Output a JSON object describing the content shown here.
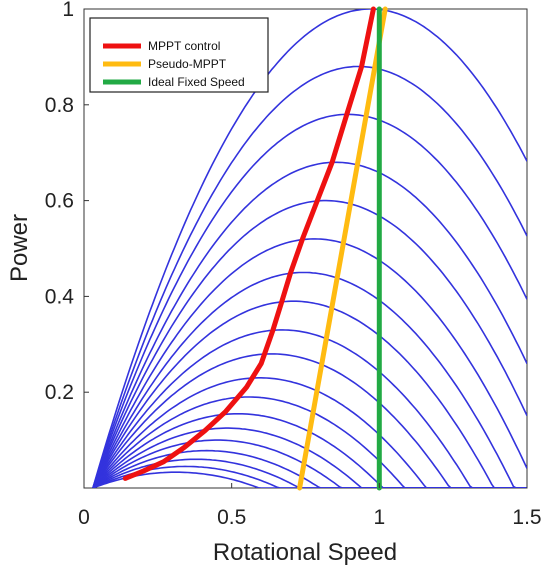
{
  "chart_data": {
    "type": "line",
    "xlabel": "Rotational Speed",
    "ylabel": "Power",
    "xlim": [
      0,
      1.5
    ],
    "ylim": [
      0,
      1.0
    ],
    "xticks": [
      "0",
      "0.5",
      "1",
      "1.5"
    ],
    "yticks": [
      "0.2",
      "0.4",
      "0.6",
      "0.8",
      "1"
    ],
    "grid": false,
    "legend_position": "top-left",
    "power_curves": {
      "color": "#3333dd",
      "peak_powers": [
        1.0,
        0.88,
        0.78,
        0.68,
        0.6,
        0.52,
        0.45,
        0.39,
        0.33,
        0.28,
        0.23,
        0.19,
        0.155,
        0.125,
        0.1,
        0.078,
        0.06,
        0.045,
        0.033
      ]
    },
    "series": [
      {
        "name": "MPPT control",
        "color": "#ee1111",
        "x": [
          0.14,
          0.2,
          0.27,
          0.34,
          0.41,
          0.48,
          0.55,
          0.6,
          0.64,
          0.67,
          0.7,
          0.74,
          0.79,
          0.84,
          0.89,
          0.94,
          0.98
        ],
        "y": [
          0.02,
          0.035,
          0.055,
          0.085,
          0.12,
          0.16,
          0.21,
          0.26,
          0.33,
          0.39,
          0.45,
          0.52,
          0.6,
          0.68,
          0.78,
          0.88,
          1.0
        ]
      },
      {
        "name": "Pseudo-MPPT",
        "color": "#ffbb11",
        "x": [
          0.73,
          1.02
        ],
        "y": [
          0.0,
          1.0
        ]
      },
      {
        "name": "Ideal Fixed Speed",
        "color": "#22aa44",
        "x": [
          1.0,
          1.0
        ],
        "y": [
          0.0,
          1.0
        ]
      }
    ]
  }
}
